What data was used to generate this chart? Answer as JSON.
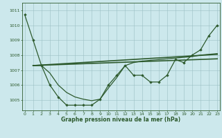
{
  "series_main": {
    "x": [
      0,
      1,
      2,
      3,
      4,
      5,
      6,
      7,
      8,
      9,
      10,
      11,
      12,
      13,
      14,
      15,
      16,
      17,
      18,
      19,
      20,
      21,
      22,
      23
    ],
    "y": [
      1010.7,
      1009.0,
      1007.3,
      1006.0,
      1005.2,
      1004.65,
      1004.65,
      1004.65,
      1004.65,
      1005.05,
      1006.0,
      1006.65,
      1007.3,
      1006.65,
      1006.65,
      1006.2,
      1006.2,
      1006.65,
      1007.7,
      1007.5,
      1008.0,
      1008.35,
      1009.3,
      1010.0
    ],
    "color": "#2d5a2d",
    "marker": "D",
    "markersize": 1.8,
    "linewidth": 0.9
  },
  "series_trend1": {
    "x": [
      1,
      23
    ],
    "y": [
      1007.3,
      1008.05
    ],
    "color": "#2d5a2d",
    "linewidth": 1.2
  },
  "series_trend2": {
    "x": [
      1,
      23
    ],
    "y": [
      1007.3,
      1007.75
    ],
    "color": "#2d5a2d",
    "linewidth": 1.2
  },
  "series_cross": {
    "x": [
      1,
      2,
      3,
      4,
      5,
      6,
      7,
      8,
      9,
      10,
      11,
      12,
      13,
      14,
      15,
      16,
      17,
      18,
      19,
      20,
      21,
      22,
      23
    ],
    "y": [
      1007.3,
      1007.3,
      1006.8,
      1006.0,
      1005.5,
      1005.2,
      1005.05,
      1004.95,
      1005.05,
      1005.8,
      1006.5,
      1007.3,
      1007.5,
      1007.6,
      1007.65,
      1007.7,
      1007.75,
      1007.8,
      1007.85,
      1007.9,
      1008.0,
      1008.05,
      1008.1
    ],
    "color": "#2d5a2d",
    "linewidth": 0.9
  },
  "ylim": [
    1004.3,
    1011.5
  ],
  "xlim": [
    -0.3,
    23.3
  ],
  "yticks": [
    1005,
    1006,
    1007,
    1008,
    1009,
    1010,
    1011
  ],
  "xticks": [
    0,
    1,
    2,
    3,
    4,
    5,
    6,
    7,
    8,
    9,
    10,
    11,
    12,
    13,
    14,
    15,
    16,
    17,
    18,
    19,
    20,
    21,
    22,
    23
  ],
  "xlabel": "Graphe pression niveau de la mer (hPa)",
  "background_color": "#cce8ec",
  "grid_color": "#9bbfc4",
  "line_color": "#2d5a2d",
  "label_color": "#2d5a2d",
  "tick_fontsize": 4.5,
  "xlabel_fontsize": 5.5
}
